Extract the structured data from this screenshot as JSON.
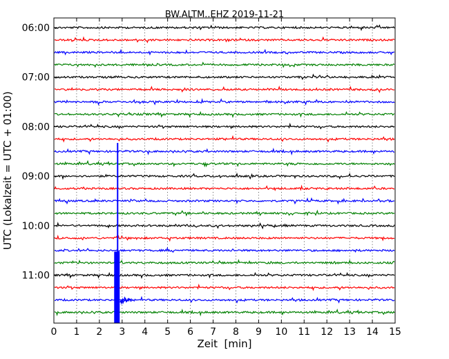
{
  "chart_data": {
    "type": "line",
    "title": "BW.ALTM..EHZ 2019-11-21",
    "xlabel": "Zeit  [min]",
    "ylabel": "UTC (Lokalzeit = UTC + 01:00)",
    "xlim": [
      0,
      15
    ],
    "x_ticks": [
      "0",
      "1",
      "2",
      "3",
      "4",
      "5",
      "6",
      "7",
      "8",
      "9",
      "10",
      "11",
      "12",
      "13",
      "14",
      "15"
    ],
    "y_ticks": [
      "06:00",
      "07:00",
      "08:00",
      "09:00",
      "10:00",
      "11:00"
    ],
    "grid": "vertical dotted",
    "trace_interval_min": 15,
    "trace_start": "06:00",
    "trace_colors": [
      "#000000",
      "#ff0000",
      "#0000ff",
      "#008000"
    ],
    "traces": [
      {
        "start": "06:00",
        "color": "#000000"
      },
      {
        "start": "06:15",
        "color": "#ff0000"
      },
      {
        "start": "06:30",
        "color": "#0000ff"
      },
      {
        "start": "06:45",
        "color": "#008000"
      },
      {
        "start": "07:00",
        "color": "#000000"
      },
      {
        "start": "07:15",
        "color": "#ff0000"
      },
      {
        "start": "07:30",
        "color": "#0000ff"
      },
      {
        "start": "07:45",
        "color": "#008000"
      },
      {
        "start": "08:00",
        "color": "#000000"
      },
      {
        "start": "08:15",
        "color": "#ff0000"
      },
      {
        "start": "08:30",
        "color": "#0000ff"
      },
      {
        "start": "08:45",
        "color": "#008000"
      },
      {
        "start": "09:00",
        "color": "#000000"
      },
      {
        "start": "09:15",
        "color": "#ff0000"
      },
      {
        "start": "09:30",
        "color": "#0000ff"
      },
      {
        "start": "09:45",
        "color": "#008000"
      },
      {
        "start": "10:00",
        "color": "#000000"
      },
      {
        "start": "10:15",
        "color": "#ff0000"
      },
      {
        "start": "10:30",
        "color": "#0000ff"
      },
      {
        "start": "10:45",
        "color": "#008000"
      },
      {
        "start": "11:00",
        "color": "#000000"
      },
      {
        "start": "11:15",
        "color": "#ff0000"
      },
      {
        "start": "11:30",
        "color": "#0000ff"
      },
      {
        "start": "11:45",
        "color": "#008000"
      }
    ],
    "events": [
      {
        "trace_start": "11:30",
        "onset_min": 2.65,
        "color": "#0000ff",
        "description_shown": false
      }
    ]
  }
}
